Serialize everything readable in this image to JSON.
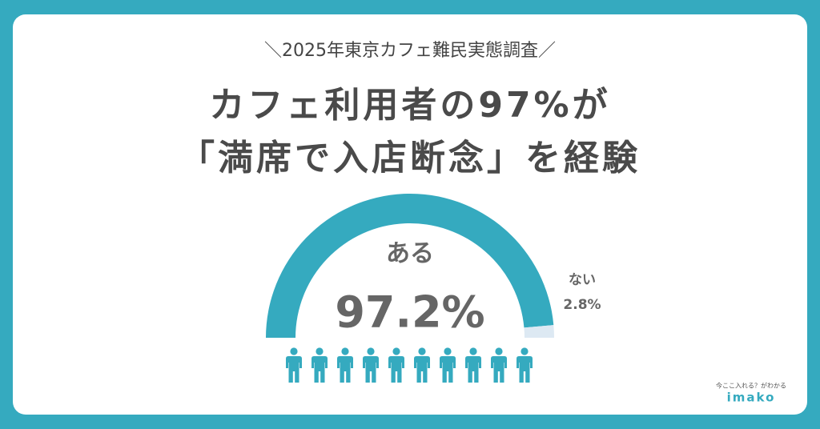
{
  "chart_data": {
    "type": "half-donut",
    "subtitle": "＼2025年東京カフェ難民実態調査／",
    "title": [
      "カフェ利用者の97%が",
      "「満席で入店断念」を経験"
    ],
    "categories": [
      "ある",
      "ない"
    ],
    "values": [
      97.2,
      2.8
    ],
    "value_labels": [
      "97.2%",
      "2.8%"
    ],
    "colors": [
      "#35aabf",
      "#dde9f3"
    ]
  },
  "brand": {
    "tagline": "今ここ入れる？がわかる",
    "name": "imako"
  }
}
